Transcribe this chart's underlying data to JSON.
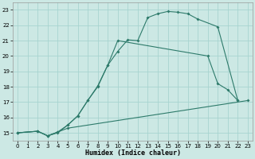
{
  "xlabel": "Humidex (Indice chaleur)",
  "bg_color": "#cce8e4",
  "grid_color": "#a8d4d0",
  "line_color": "#2d7a6a",
  "xlim": [
    -0.5,
    23.5
  ],
  "ylim": [
    14.5,
    23.5
  ],
  "xticks": [
    0,
    1,
    2,
    3,
    4,
    5,
    6,
    7,
    8,
    9,
    10,
    11,
    12,
    13,
    14,
    15,
    16,
    17,
    18,
    19,
    20,
    21,
    22,
    23
  ],
  "yticks": [
    15,
    16,
    17,
    18,
    19,
    20,
    21,
    22,
    23
  ],
  "curve_top_x": [
    0,
    2,
    3,
    4,
    5,
    6,
    7,
    8,
    9,
    10,
    11,
    12,
    13,
    14,
    15,
    16,
    17,
    18,
    20,
    22
  ],
  "curve_top_y": [
    15.0,
    15.1,
    14.8,
    15.0,
    15.5,
    16.1,
    17.1,
    18.0,
    19.4,
    20.3,
    21.05,
    21.0,
    22.5,
    22.75,
    22.9,
    22.85,
    22.75,
    22.4,
    21.9,
    17.1
  ],
  "curve_mid_x": [
    0,
    2,
    3,
    4,
    5,
    6,
    7,
    8,
    9,
    10,
    19,
    20,
    21,
    22
  ],
  "curve_mid_y": [
    15.0,
    15.1,
    14.8,
    15.05,
    15.5,
    16.1,
    17.1,
    18.05,
    19.4,
    21.0,
    20.0,
    18.2,
    17.8,
    17.1
  ],
  "curve_bot_x": [
    0,
    2,
    3,
    4,
    5,
    23
  ],
  "curve_bot_y": [
    15.0,
    15.1,
    14.8,
    15.05,
    15.3,
    17.1
  ]
}
